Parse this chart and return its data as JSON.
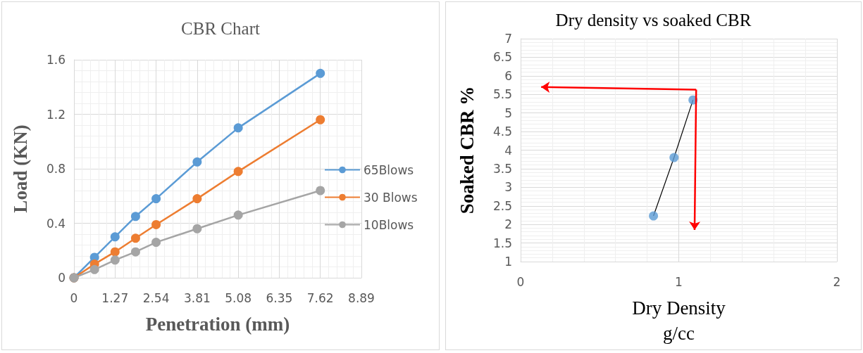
{
  "chart_data": [
    {
      "type": "line",
      "title": "CBR Chart",
      "xlabel": "Penetration (mm)",
      "ylabel": "Load (KN)",
      "x": [
        0,
        0.635,
        1.27,
        1.905,
        2.54,
        3.81,
        5.08,
        7.62
      ],
      "series": [
        {
          "name": "65Blows",
          "color": "#5b9bd5",
          "values": [
            0,
            0.15,
            0.3,
            0.45,
            0.58,
            0.85,
            1.1,
            1.5
          ]
        },
        {
          "name": "30 Blows",
          "color": "#ed7d31",
          "values": [
            0,
            0.1,
            0.19,
            0.29,
            0.39,
            0.58,
            0.78,
            1.16
          ]
        },
        {
          "name": "10Blows",
          "color": "#a5a5a5",
          "values": [
            0,
            0.06,
            0.13,
            0.19,
            0.26,
            0.36,
            0.46,
            0.64
          ]
        }
      ],
      "xlim": [
        0,
        8.89
      ],
      "xticks": [
        0,
        1.27,
        2.54,
        3.81,
        5.08,
        6.35,
        7.62,
        8.89
      ],
      "ylim": [
        0,
        1.6
      ],
      "yticks": [
        0,
        0.4,
        0.8,
        1.2,
        1.6
      ],
      "grid": true,
      "legend": "right",
      "marker": "circle",
      "line_style": "solid"
    },
    {
      "type": "scatter",
      "title": "Dry density vs soaked CBR",
      "xlabel": "Dry Density\ng/cc",
      "ylabel": "Soaked CBR %",
      "x": [
        0.84,
        0.97,
        1.09
      ],
      "series": [
        {
          "color": "#5b9bd5",
          "values": [
            2.23,
            3.8,
            5.35
          ]
        },
        {
          "type": "line",
          "color": "#000000",
          "values": [
            2.23,
            3.8,
            5.35
          ],
          "marker": "none"
        },
        {
          "type": "line",
          "color": "#ff0000",
          "x": [
            0.13,
            1.11,
            1.1
          ],
          "values": [
            5.7,
            5.63,
            1.85
          ],
          "marker": "none"
        }
      ],
      "xlim": [
        0,
        2
      ],
      "xticks": [
        0,
        1,
        2
      ],
      "ylim": [
        1,
        7
      ],
      "yticks": [
        1,
        1.5,
        2,
        2.5,
        3,
        3.5,
        4,
        4.5,
        5,
        5.5,
        6,
        6.5,
        7
      ],
      "grid": true,
      "marker": "circle"
    }
  ]
}
